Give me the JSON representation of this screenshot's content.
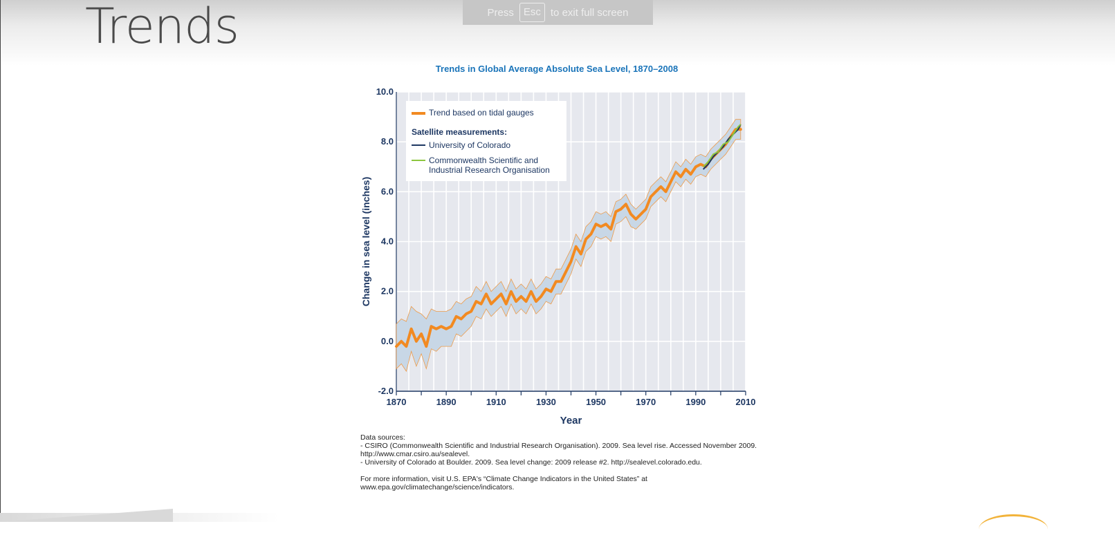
{
  "slide": {
    "title": "Trends"
  },
  "fullscreen_banner": {
    "press": "Press",
    "key": "Esc",
    "rest": "to exit full screen"
  },
  "legend": {
    "trend": "Trend based on tidal gauges",
    "satellite_header": "Satellite measurements:",
    "colorado": "University of Colorado",
    "csiro_line1": "Commonwealth Scientific and",
    "csiro_line2": "Industrial Research Organisation"
  },
  "notes": {
    "l1": "Data sources:",
    "l2": "- CSIRO (Commonwealth Scientific and Industrial Research Organisation). 2009. Sea level rise. Accessed November 2009.",
    "l3": "http://www.cmar.csiro.au/sealevel.",
    "l4": "- University of Colorado at Boulder. 2009. Sea level change: 2009 release #2. http://sealevel.colorado.edu.",
    "l5": "For more information, visit U.S. EPA's “Climate Change Indicators in the United States” at",
    "l6": "www.epa.gov/climatechange/science/indicators."
  },
  "colors": {
    "trend": "#f28a21",
    "band": "#c8d7e6",
    "colorado": "#1d3762",
    "csiro": "#8cc63f",
    "plot_bg": "#e6e8ee"
  },
  "chart_data": {
    "type": "line",
    "title": "Trends in Global Average Absolute Sea Level, 1870–2008",
    "xlabel": "Year",
    "ylabel": "Change in sea level (inches)",
    "xlim": [
      1870,
      2010
    ],
    "ylim": [
      -2.0,
      10.0
    ],
    "xticks": [
      1870,
      1890,
      1910,
      1930,
      1950,
      1970,
      1990,
      2010
    ],
    "yticks": [
      -2.0,
      0.0,
      2.0,
      4.0,
      6.0,
      8.0,
      10.0
    ],
    "ytick_labels": [
      "-2.0",
      "0.0",
      "2.0",
      "4.0",
      "6.0",
      "8.0",
      "10.0"
    ],
    "grid": true,
    "legend_position": "top-left",
    "series": [
      {
        "name": "Trend based on tidal gauges",
        "x": [
          1870,
          1872,
          1874,
          1876,
          1878,
          1880,
          1882,
          1884,
          1886,
          1888,
          1890,
          1892,
          1894,
          1896,
          1898,
          1900,
          1902,
          1904,
          1906,
          1908,
          1910,
          1912,
          1914,
          1916,
          1918,
          1920,
          1922,
          1924,
          1926,
          1928,
          1930,
          1932,
          1934,
          1936,
          1938,
          1940,
          1942,
          1944,
          1946,
          1948,
          1950,
          1952,
          1954,
          1956,
          1958,
          1960,
          1962,
          1964,
          1966,
          1968,
          1970,
          1972,
          1974,
          1976,
          1978,
          1980,
          1982,
          1984,
          1986,
          1988,
          1990,
          1992,
          1994,
          1996,
          1998,
          2000,
          2002,
          2004,
          2006,
          2008
        ],
        "values": [
          -0.2,
          0.0,
          -0.2,
          0.5,
          0.0,
          0.3,
          -0.2,
          0.6,
          0.5,
          0.6,
          0.5,
          0.6,
          1.0,
          0.9,
          1.1,
          1.2,
          1.6,
          1.5,
          1.9,
          1.5,
          1.7,
          1.9,
          1.5,
          2.0,
          1.6,
          1.8,
          1.6,
          2.0,
          1.6,
          1.8,
          2.1,
          2.0,
          2.4,
          2.4,
          2.8,
          3.2,
          3.8,
          3.5,
          4.1,
          4.3,
          4.7,
          4.6,
          4.7,
          4.5,
          5.2,
          5.3,
          5.5,
          5.1,
          4.9,
          5.1,
          5.3,
          5.8,
          6.0,
          6.2,
          6.0,
          6.4,
          6.8,
          6.6,
          6.9,
          6.7,
          7.0,
          7.1,
          7.0,
          7.3,
          7.5,
          7.7,
          7.9,
          8.2,
          8.5,
          8.5
        ],
        "upper": [
          0.7,
          0.9,
          0.8,
          1.4,
          1.2,
          1.1,
          0.9,
          1.3,
          1.2,
          1.2,
          1.2,
          1.3,
          1.6,
          1.5,
          1.7,
          1.8,
          2.2,
          2.0,
          2.4,
          2.0,
          2.2,
          2.4,
          2.0,
          2.5,
          2.1,
          2.3,
          2.1,
          2.5,
          2.1,
          2.3,
          2.6,
          2.5,
          2.9,
          2.9,
          3.3,
          3.7,
          4.3,
          4.0,
          4.6,
          4.8,
          5.2,
          5.1,
          5.2,
          5.0,
          5.6,
          5.7,
          5.9,
          5.5,
          5.3,
          5.5,
          5.7,
          6.2,
          6.4,
          6.6,
          6.4,
          6.8,
          7.2,
          7.0,
          7.3,
          7.1,
          7.4,
          7.5,
          7.4,
          7.7,
          7.9,
          8.1,
          8.3,
          8.6,
          8.9,
          8.9
        ],
        "lower": [
          -1.1,
          -0.9,
          -1.2,
          -0.4,
          -1.0,
          -0.5,
          -1.1,
          -0.3,
          -0.4,
          -0.2,
          -0.2,
          -0.2,
          0.3,
          0.2,
          0.4,
          0.6,
          1.0,
          0.9,
          1.3,
          1.0,
          1.2,
          1.4,
          1.0,
          1.5,
          1.1,
          1.3,
          1.1,
          1.5,
          1.1,
          1.3,
          1.6,
          1.5,
          1.9,
          1.9,
          2.3,
          2.7,
          3.3,
          3.0,
          3.6,
          3.8,
          4.2,
          4.1,
          4.2,
          4.0,
          4.7,
          4.8,
          5.0,
          4.6,
          4.5,
          4.7,
          4.9,
          5.4,
          5.6,
          5.8,
          5.6,
          6.0,
          6.4,
          6.2,
          6.5,
          6.3,
          6.6,
          6.7,
          6.6,
          6.9,
          7.1,
          7.3,
          7.5,
          7.8,
          8.1,
          8.1
        ]
      },
      {
        "name": "University of Colorado",
        "x": [
          1993,
          1995,
          1997,
          1999,
          2001,
          2003,
          2005,
          2007,
          2008
        ],
        "values": [
          6.9,
          7.1,
          7.4,
          7.6,
          7.8,
          8.1,
          8.3,
          8.5,
          8.7
        ]
      },
      {
        "name": "Commonwealth Scientific and Industrial Research Organisation",
        "x": [
          1993,
          1995,
          1997,
          1999,
          2001,
          2003,
          2005,
          2007,
          2008
        ],
        "values": [
          7.0,
          7.2,
          7.5,
          7.6,
          7.9,
          8.0,
          8.3,
          8.6,
          8.7
        ]
      }
    ]
  }
}
